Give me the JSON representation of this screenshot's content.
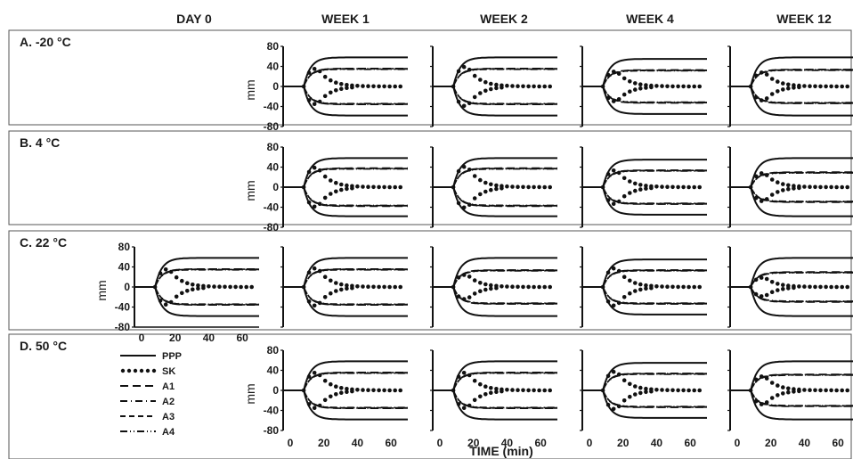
{
  "columns": [
    "DAY 0",
    "WEEK 1",
    "WEEK 2",
    "WEEK 4",
    "WEEK 12"
  ],
  "rows": [
    "A. -20 °C",
    "B. 4 °C",
    "C. 22 °C",
    "D. 50 °C"
  ],
  "x_axis_title": "TIME (min)",
  "y_axis_title": "mm",
  "legend": [
    "PPP",
    "SK",
    "A1",
    "A2",
    "A3",
    "A4"
  ],
  "chart_data": {
    "type": "line",
    "description_of_encoding": "Small-multiple thromboelastography-style traces; each panel shows clot amplitude (mm) mirrored around 0 vs. time (min).",
    "ylabel": "mm",
    "xlabel": "TIME (min)",
    "ylim": [
      -80,
      80
    ],
    "xlim": [
      0,
      70
    ],
    "yticks": [
      80,
      40,
      0,
      -40,
      -80
    ],
    "xticks": [
      0,
      20,
      40,
      60
    ],
    "series_styles": {
      "PPP": "solid",
      "SK": "dotted",
      "A1": "long-dash",
      "A2": "dash-dot",
      "A3": "dashed",
      "A4": "dash-dot-dot"
    },
    "panels": [
      {
        "row": "A. -20 °C",
        "col": "WEEK 1",
        "ppp_max": 58,
        "sk_peak": 38,
        "sk_final": 0,
        "others_max": 36
      },
      {
        "row": "A. -20 °C",
        "col": "WEEK 2",
        "ppp_max": 58,
        "sk_peak": 42,
        "sk_final": 0,
        "others_max": 36
      },
      {
        "row": "A. -20 °C",
        "col": "WEEK 4",
        "ppp_max": 55,
        "sk_peak": 32,
        "sk_final": 0,
        "others_max": 33
      },
      {
        "row": "A. -20 °C",
        "col": "WEEK 12",
        "ppp_max": 58,
        "sk_peak": 30,
        "sk_final": 0,
        "others_max": 34
      },
      {
        "row": "B. 4 °C",
        "col": "WEEK 1",
        "ppp_max": 58,
        "sk_peak": 42,
        "sk_final": 0,
        "others_max": 38
      },
      {
        "row": "B. 4 °C",
        "col": "WEEK 2",
        "ppp_max": 58,
        "sk_peak": 44,
        "sk_final": 0,
        "others_max": 38
      },
      {
        "row": "B. 4 °C",
        "col": "WEEK 4",
        "ppp_max": 55,
        "sk_peak": 36,
        "sk_final": 0,
        "others_max": 34
      },
      {
        "row": "B. 4 °C",
        "col": "WEEK 12",
        "ppp_max": 58,
        "sk_peak": 30,
        "sk_final": 0,
        "others_max": 30
      },
      {
        "row": "C. 22 °C",
        "col": "DAY 0",
        "ppp_max": 58,
        "sk_peak": 38,
        "sk_final": 0,
        "others_max": 36
      },
      {
        "row": "C. 22 °C",
        "col": "WEEK 1",
        "ppp_max": 58,
        "sk_peak": 40,
        "sk_final": 0,
        "others_max": 36
      },
      {
        "row": "C. 22 °C",
        "col": "WEEK 2",
        "ppp_max": 58,
        "sk_peak": 26,
        "sk_final": 0,
        "others_max": 34
      },
      {
        "row": "C. 22 °C",
        "col": "WEEK 4",
        "ppp_max": 55,
        "sk_peak": 40,
        "sk_final": 0,
        "others_max": 34
      },
      {
        "row": "C. 22 °C",
        "col": "WEEK 12",
        "ppp_max": 58,
        "sk_peak": 20,
        "sk_final": 0,
        "others_max": 30
      },
      {
        "row": "D. 50 °C",
        "col": "WEEK 1",
        "ppp_max": 58,
        "sk_peak": 38,
        "sk_final": 0,
        "others_max": 36
      },
      {
        "row": "D. 50 °C",
        "col": "WEEK 2",
        "ppp_max": 58,
        "sk_peak": 38,
        "sk_final": 0,
        "others_max": 36
      },
      {
        "row": "D. 50 °C",
        "col": "WEEK 4",
        "ppp_max": 55,
        "sk_peak": 40,
        "sk_final": 0,
        "others_max": 34
      },
      {
        "row": "D. 50 °C",
        "col": "WEEK 12",
        "ppp_max": 58,
        "sk_peak": 30,
        "sk_final": 0,
        "others_max": 32
      }
    ]
  }
}
